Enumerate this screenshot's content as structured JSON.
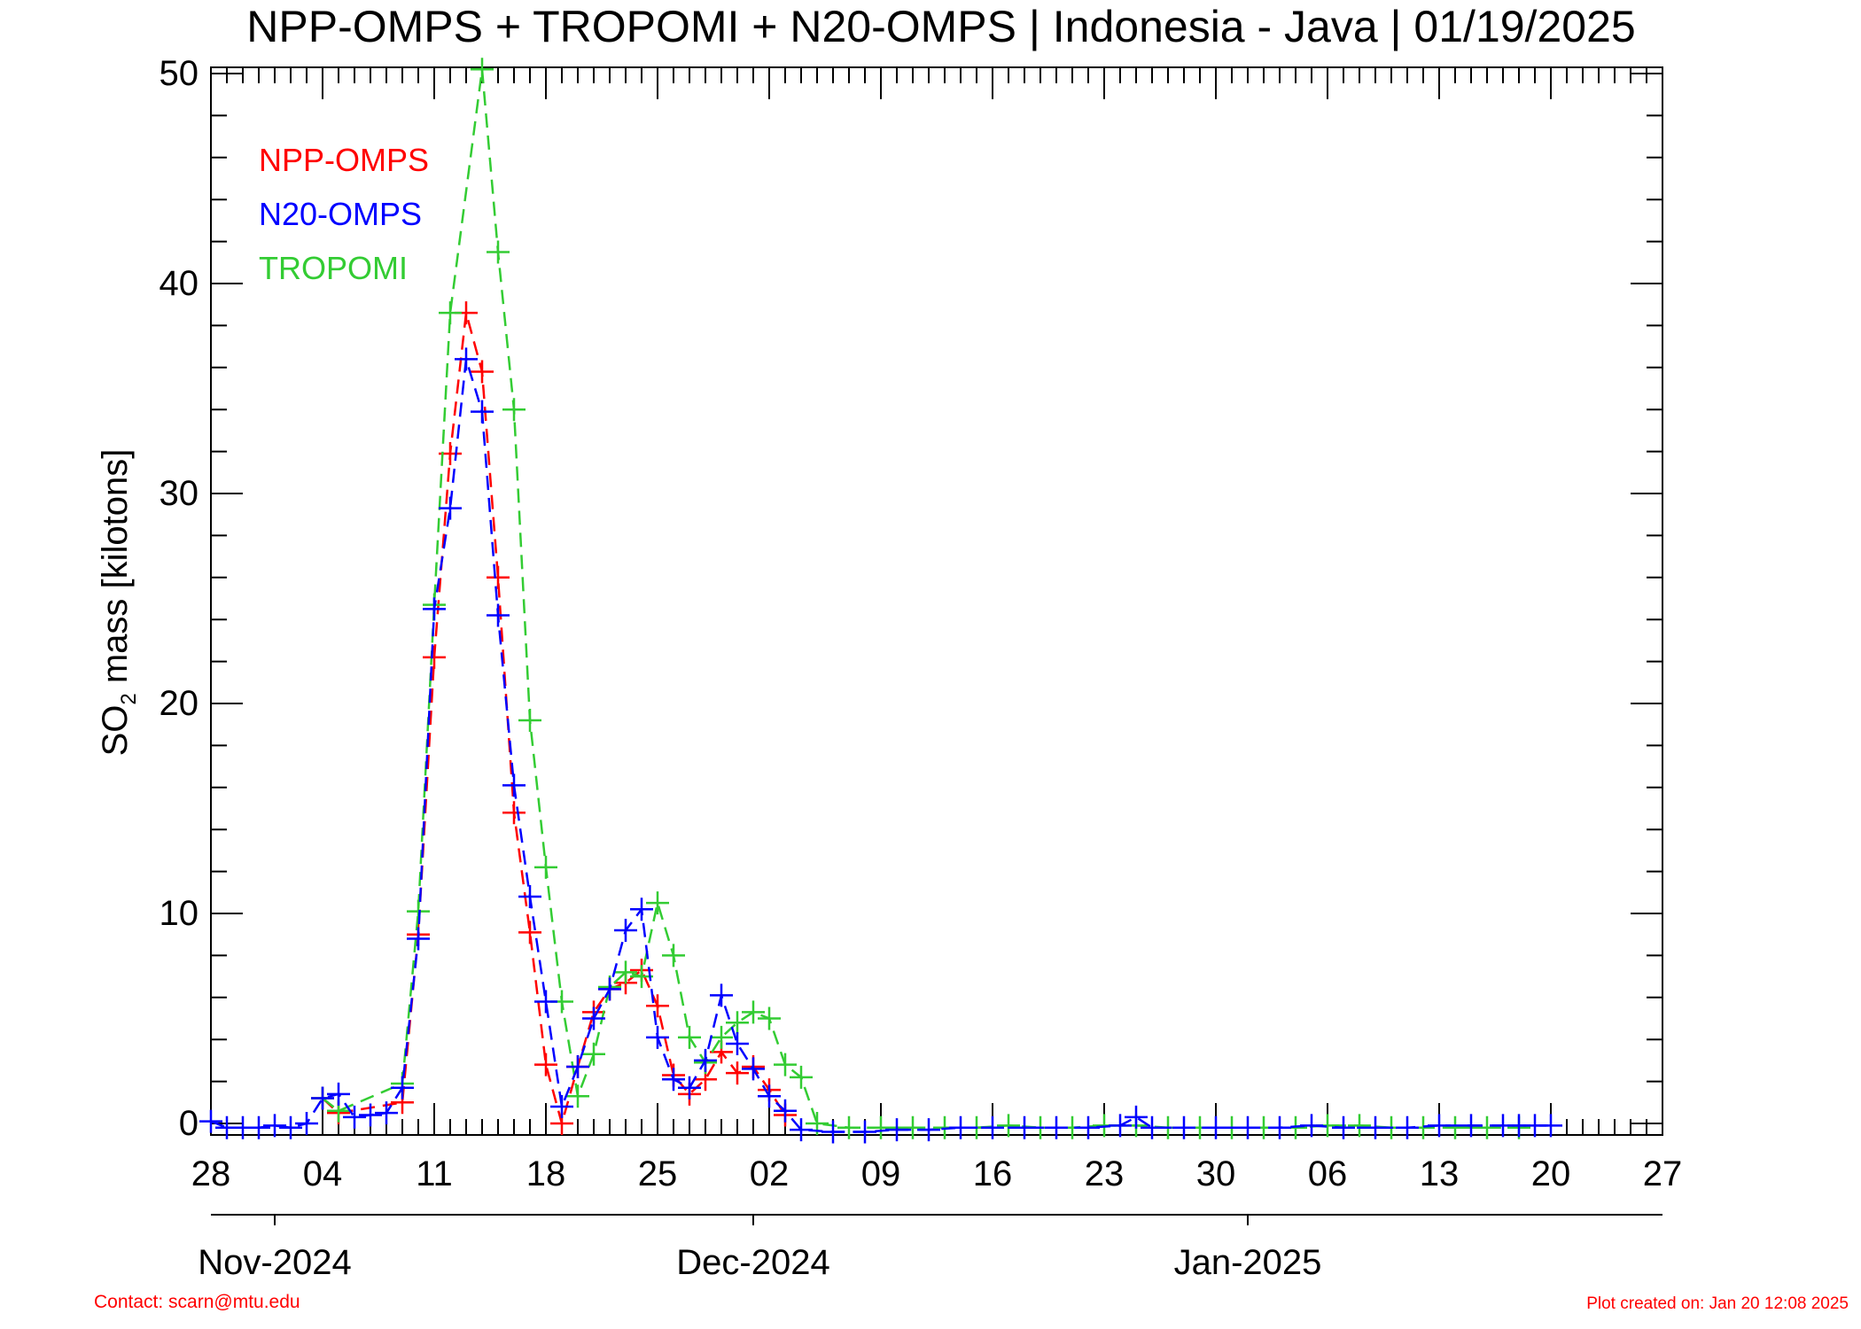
{
  "chart_data": {
    "type": "line",
    "title": "NPP-OMPS + TROPOMI + N20-OMPS | Indonesia - Java | 01/19/2025",
    "ylabel_main": "SO",
    "ylabel_sub": "2",
    "ylabel_rest": " mass [kilotons]",
    "ylim": [
      0,
      50
    ],
    "yticks": [
      "0",
      "10",
      "20",
      "30",
      "40",
      "50"
    ],
    "xlim": [
      "2024-10-28",
      "2025-01-27"
    ],
    "xticks": [
      "28",
      "04",
      "11",
      "18",
      "25",
      "02",
      "09",
      "16",
      "23",
      "30",
      "06",
      "13",
      "20",
      "27"
    ],
    "months": [
      {
        "label": "Nov-2024",
        "date": "2024-11-01"
      },
      {
        "label": "Dec-2024",
        "date": "2024-12-01"
      },
      {
        "label": "Jan-2025",
        "date": "2025-01-01"
      }
    ],
    "legend_position": "top-left",
    "grid": false,
    "series": [
      {
        "name": "NPP-OMPS",
        "color": "#ff0000",
        "points": [
          [
            "2024-11-04",
            1.2
          ],
          [
            "2024-11-05",
            0.5
          ],
          [
            "2024-11-09",
            1.0
          ],
          [
            "2024-11-10",
            9.0
          ],
          [
            "2024-11-11",
            22.2
          ],
          [
            "2024-11-12",
            31.9
          ],
          [
            "2024-11-13",
            38.6
          ],
          [
            "2024-11-14",
            35.8
          ],
          [
            "2024-11-15",
            26.0
          ],
          [
            "2024-11-16",
            14.8
          ],
          [
            "2024-11-17",
            9.1
          ],
          [
            "2024-11-18",
            2.8
          ],
          [
            "2024-11-19",
            0.0
          ],
          [
            "2024-11-20",
            2.7
          ],
          [
            "2024-11-21",
            5.3
          ],
          [
            "2024-11-22",
            6.4
          ],
          [
            "2024-11-23",
            6.7
          ],
          [
            "2024-11-24",
            7.3
          ],
          [
            "2024-11-25",
            5.6
          ],
          [
            "2024-11-26",
            2.3
          ],
          [
            "2024-11-27",
            1.4
          ],
          [
            "2024-11-28",
            2.1
          ],
          [
            "2024-11-29",
            3.4
          ],
          [
            "2024-11-30",
            2.4
          ],
          [
            "2024-12-01",
            2.7
          ],
          [
            "2024-12-02",
            1.6
          ],
          [
            "2024-12-03",
            0.4
          ]
        ]
      },
      {
        "name": "N20-OMPS",
        "color": "#0000ff",
        "points": [
          [
            "2024-10-28",
            0.1
          ],
          [
            "2024-10-29",
            -0.2
          ],
          [
            "2024-10-30",
            -0.2
          ],
          [
            "2024-10-31",
            -0.2
          ],
          [
            "2024-11-01",
            -0.1
          ],
          [
            "2024-11-02",
            -0.2
          ],
          [
            "2024-11-03",
            0.0
          ],
          [
            "2024-11-04",
            1.2
          ],
          [
            "2024-11-05",
            1.4
          ],
          [
            "2024-11-06",
            0.3
          ],
          [
            "2024-11-07",
            0.4
          ],
          [
            "2024-11-08",
            0.5
          ],
          [
            "2024-11-09",
            1.7
          ],
          [
            "2024-11-10",
            8.8
          ],
          [
            "2024-11-11",
            24.5
          ],
          [
            "2024-11-12",
            29.3
          ],
          [
            "2024-11-13",
            36.4
          ],
          [
            "2024-11-14",
            33.9
          ],
          [
            "2024-11-15",
            24.2
          ],
          [
            "2024-11-16",
            16.1
          ],
          [
            "2024-11-17",
            10.8
          ],
          [
            "2024-11-18",
            5.8
          ],
          [
            "2024-11-19",
            0.8
          ],
          [
            "2024-11-20",
            2.7
          ],
          [
            "2024-11-21",
            5.0
          ],
          [
            "2024-11-22",
            6.4
          ],
          [
            "2024-11-23",
            9.2
          ],
          [
            "2024-11-24",
            10.2
          ],
          [
            "2024-11-25",
            4.1
          ],
          [
            "2024-11-26",
            2.1
          ],
          [
            "2024-11-27",
            1.7
          ],
          [
            "2024-11-28",
            3.0
          ],
          [
            "2024-11-29",
            6.1
          ],
          [
            "2024-11-30",
            3.8
          ],
          [
            "2024-12-01",
            2.6
          ],
          [
            "2024-12-02",
            1.3
          ],
          [
            "2024-12-03",
            0.6
          ],
          [
            "2024-12-04",
            -0.3
          ],
          [
            "2024-12-06",
            -0.4
          ],
          [
            "2024-12-08",
            -0.4
          ],
          [
            "2024-12-10",
            -0.3
          ],
          [
            "2024-12-12",
            -0.3
          ],
          [
            "2024-12-14",
            -0.2
          ],
          [
            "2024-12-16",
            -0.2
          ],
          [
            "2024-12-18",
            -0.2
          ],
          [
            "2024-12-20",
            -0.2
          ],
          [
            "2024-12-22",
            -0.2
          ],
          [
            "2024-12-24",
            -0.1
          ],
          [
            "2024-12-25",
            0.3
          ],
          [
            "2024-12-26",
            -0.2
          ],
          [
            "2024-12-28",
            -0.2
          ],
          [
            "2024-12-30",
            -0.2
          ],
          [
            "2025-01-01",
            -0.2
          ],
          [
            "2025-01-03",
            -0.2
          ],
          [
            "2025-01-05",
            -0.1
          ],
          [
            "2025-01-07",
            -0.2
          ],
          [
            "2025-01-09",
            -0.2
          ],
          [
            "2025-01-11",
            -0.2
          ],
          [
            "2025-01-13",
            -0.1
          ],
          [
            "2025-01-15",
            -0.1
          ],
          [
            "2025-01-17",
            -0.1
          ],
          [
            "2025-01-18",
            -0.1
          ],
          [
            "2025-01-19",
            -0.1
          ],
          [
            "2025-01-20",
            -0.1
          ]
        ]
      },
      {
        "name": "TROPOMI",
        "color": "#33cc33",
        "points": [
          [
            "2024-11-04",
            1.2
          ],
          [
            "2024-11-05",
            0.6
          ],
          [
            "2024-11-09",
            1.9
          ],
          [
            "2024-11-10",
            10.1
          ],
          [
            "2024-11-11",
            24.7
          ],
          [
            "2024-11-12",
            38.6
          ],
          [
            "2024-11-14",
            50.2
          ],
          [
            "2024-11-15",
            41.5
          ],
          [
            "2024-11-16",
            34.0
          ],
          [
            "2024-11-17",
            19.2
          ],
          [
            "2024-11-18",
            12.2
          ],
          [
            "2024-11-19",
            5.8
          ],
          [
            "2024-11-20",
            1.3
          ],
          [
            "2024-11-21",
            3.3
          ],
          [
            "2024-11-22",
            6.5
          ],
          [
            "2024-11-23",
            7.2
          ],
          [
            "2024-11-24",
            7.0
          ],
          [
            "2024-11-25",
            10.5
          ],
          [
            "2024-11-26",
            8.0
          ],
          [
            "2024-11-27",
            4.1
          ],
          [
            "2024-11-28",
            2.9
          ],
          [
            "2024-11-29",
            4.1
          ],
          [
            "2024-11-30",
            4.8
          ],
          [
            "2024-12-01",
            5.3
          ],
          [
            "2024-12-02",
            5.0
          ],
          [
            "2024-12-03",
            2.8
          ],
          [
            "2024-12-04",
            2.2
          ],
          [
            "2024-12-05",
            0.0
          ],
          [
            "2024-12-07",
            -0.2
          ],
          [
            "2024-12-09",
            -0.2
          ],
          [
            "2024-12-11",
            -0.2
          ],
          [
            "2024-12-13",
            -0.2
          ],
          [
            "2024-12-15",
            -0.2
          ],
          [
            "2024-12-17",
            -0.1
          ],
          [
            "2024-12-19",
            -0.2
          ],
          [
            "2024-12-21",
            -0.2
          ],
          [
            "2024-12-23",
            -0.1
          ],
          [
            "2024-12-25",
            -0.1
          ],
          [
            "2024-12-27",
            -0.2
          ],
          [
            "2024-12-29",
            -0.2
          ],
          [
            "2024-12-31",
            -0.2
          ],
          [
            "2025-01-02",
            -0.2
          ],
          [
            "2025-01-04",
            -0.2
          ],
          [
            "2025-01-06",
            -0.1
          ],
          [
            "2025-01-08",
            -0.1
          ],
          [
            "2025-01-10",
            -0.2
          ],
          [
            "2025-01-12",
            -0.2
          ],
          [
            "2025-01-14",
            -0.2
          ],
          [
            "2025-01-16",
            -0.2
          ],
          [
            "2025-01-18",
            -0.2
          ]
        ]
      }
    ]
  },
  "footer": {
    "contact": "Contact: scarn@mtu.edu",
    "created": "Plot created on: Jan 20 12:08 2025"
  }
}
